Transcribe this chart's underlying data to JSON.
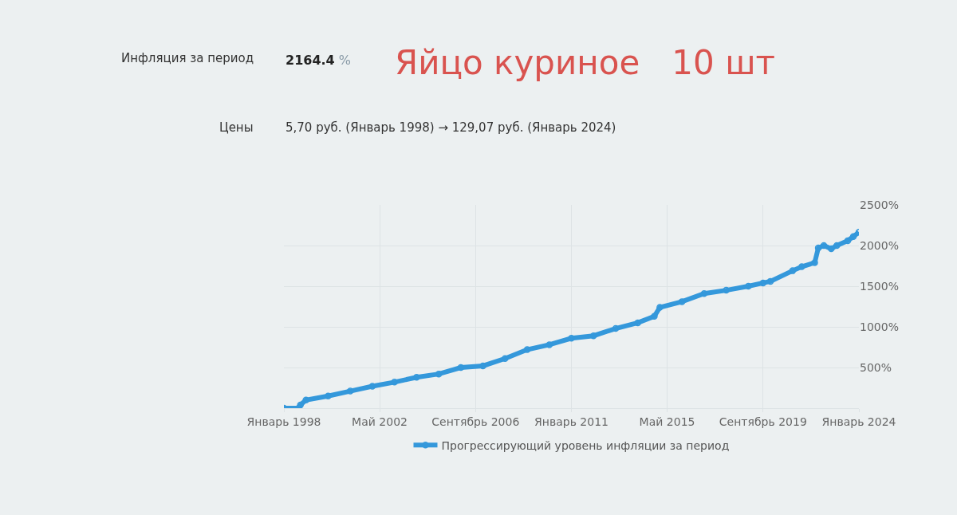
{
  "chart_data": {
    "type": "line",
    "title": "Яйцо куриное   10 шт",
    "annotations": [
      "Инфляция за период",
      "2164.4 %",
      "Цены",
      "5,70 руб. (Январь 1998) → 129,07 руб. (Январь 2024)"
    ],
    "x": [
      "1998-01",
      "1998-09",
      "1998-10",
      "1999-01",
      "2000-01",
      "2001-01",
      "2002-01",
      "2003-01",
      "2004-01",
      "2005-01",
      "2006-01",
      "2007-01",
      "2008-01",
      "2009-01",
      "2010-01",
      "2011-01",
      "2012-01",
      "2013-01",
      "2014-01",
      "2014-10",
      "2015-01",
      "2016-01",
      "2017-01",
      "2018-01",
      "2019-01",
      "2019-09",
      "2020-01",
      "2021-01",
      "2021-06",
      "2022-01",
      "2022-03",
      "2022-06",
      "2022-10",
      "2023-01",
      "2023-07",
      "2023-10",
      "2024-01"
    ],
    "series": [
      {
        "name": "Прогрессирующий уровень инфляции за период",
        "color": "#3498db",
        "values": [
          0,
          0,
          40,
          100,
          150,
          210,
          270,
          320,
          380,
          420,
          500,
          520,
          610,
          720,
          780,
          860,
          890,
          980,
          1050,
          1130,
          1240,
          1310,
          1410,
          1450,
          1500,
          1540,
          1560,
          1690,
          1740,
          1790,
          1970,
          2000,
          1960,
          2000,
          2060,
          2110,
          2164.4
        ]
      }
    ],
    "xlim": [
      "1998-01",
      "2024-01"
    ],
    "xticks": [
      {
        "value": "1998-01",
        "label": "Январь 1998"
      },
      {
        "value": "2002-05",
        "label": "Май 2002"
      },
      {
        "value": "2006-09",
        "label": "Сентябрь 2006"
      },
      {
        "value": "2011-01",
        "label": "Январь 2011"
      },
      {
        "value": "2015-05",
        "label": "Май 2015"
      },
      {
        "value": "2019-09",
        "label": "Сентябрь 2019"
      },
      {
        "value": "2024-01",
        "label": "Январь 2024"
      }
    ],
    "ylim": [
      0,
      2500
    ],
    "yticks": [
      {
        "value": 0,
        "label": null
      },
      {
        "value": 500,
        "label": "500%"
      },
      {
        "value": 1000,
        "label": "1000%"
      },
      {
        "value": 1500,
        "label": "1500%"
      },
      {
        "value": 2000,
        "label": "2000%"
      },
      {
        "value": 2500,
        "label": "2500%"
      }
    ],
    "grid": true,
    "legend": "bottom",
    "marker": "circle",
    "line_style": "solid"
  }
}
